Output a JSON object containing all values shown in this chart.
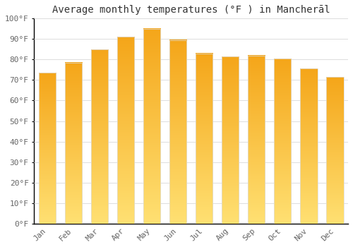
{
  "title": "Average monthly temperatures (°F ) in Mancherāl",
  "months": [
    "Jan",
    "Feb",
    "Mar",
    "Apr",
    "May",
    "Jun",
    "Jul",
    "Aug",
    "Sep",
    "Oct",
    "Nov",
    "Dec"
  ],
  "values": [
    73.5,
    78.5,
    85.0,
    91.0,
    95.0,
    89.5,
    83.0,
    81.5,
    82.0,
    80.5,
    75.5,
    71.5
  ],
  "bar_color_bottom": "#F5A800",
  "bar_color_top": "#FFD966",
  "bar_edge_color": "#DDDDDD",
  "background_color": "#FFFFFF",
  "grid_color": "#DDDDDD",
  "ylim": [
    0,
    100
  ],
  "yticks": [
    0,
    10,
    20,
    30,
    40,
    50,
    60,
    70,
    80,
    90,
    100
  ],
  "ytick_labels": [
    "0°F",
    "10°F",
    "20°F",
    "30°F",
    "40°F",
    "50°F",
    "60°F",
    "70°F",
    "80°F",
    "90°F",
    "100°F"
  ],
  "title_fontsize": 10,
  "tick_fontsize": 8,
  "font_family": "monospace",
  "spine_color": "#000000",
  "tick_color": "#666666"
}
